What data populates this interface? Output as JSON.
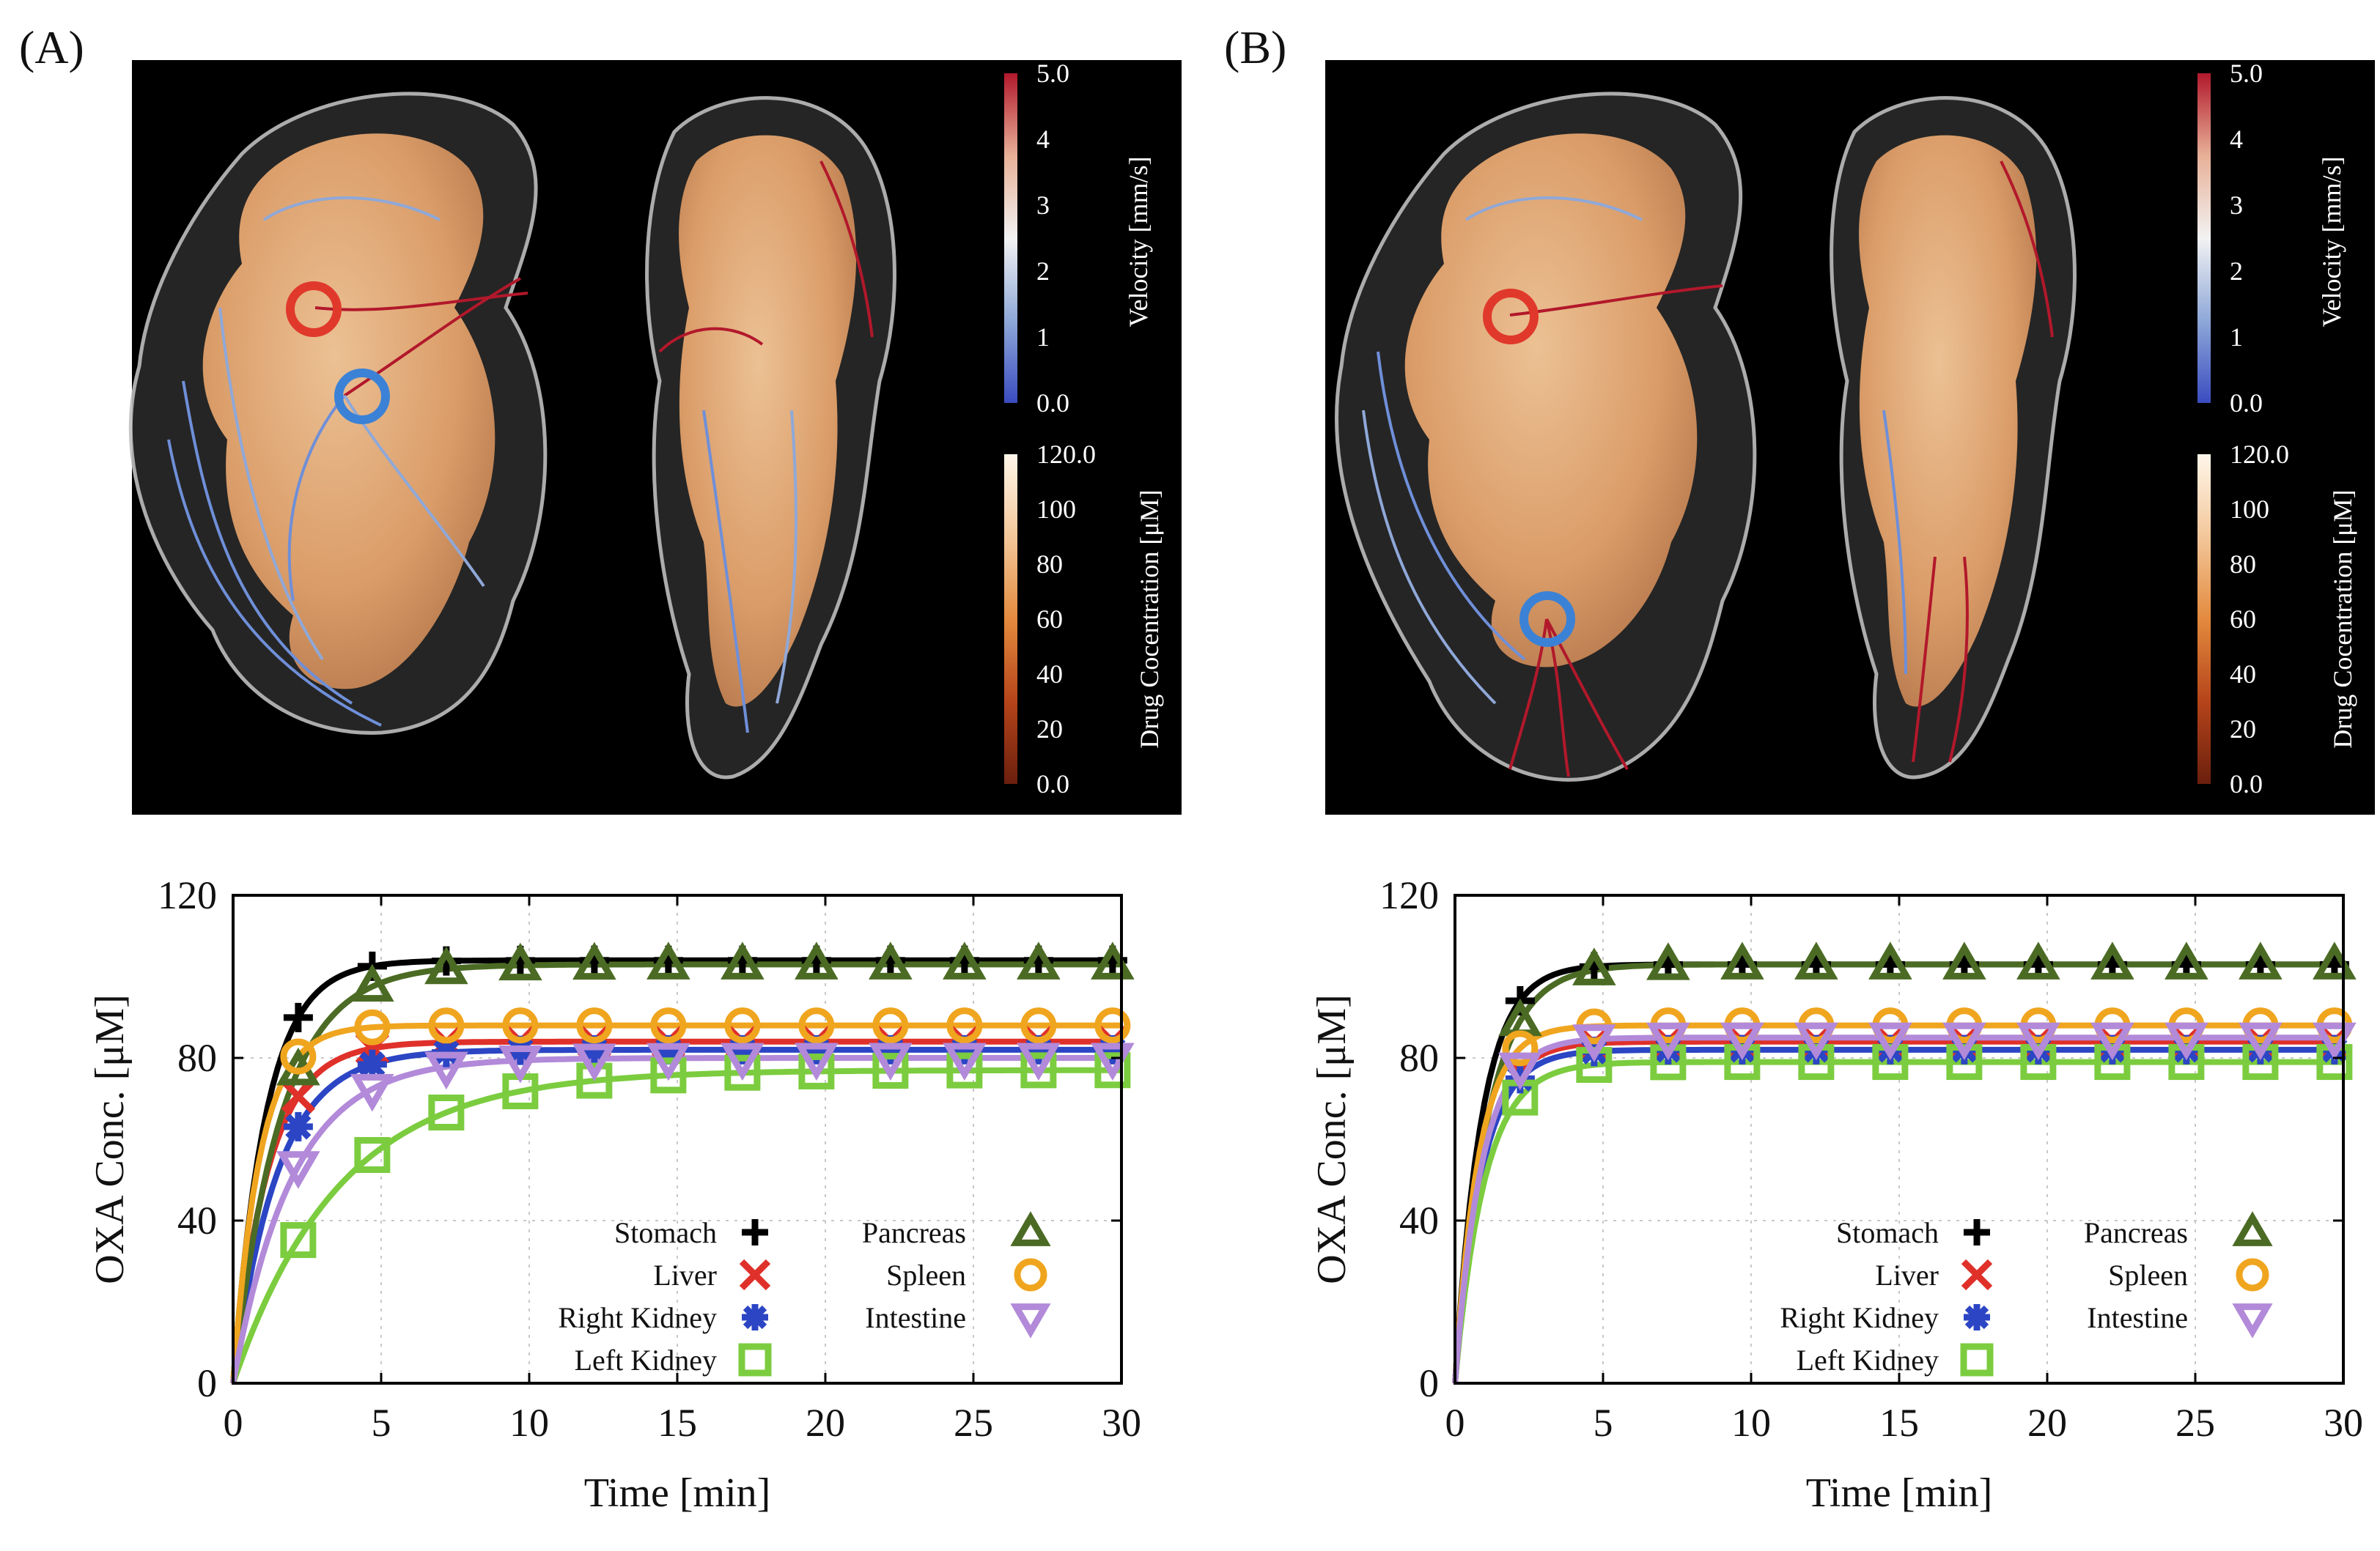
{
  "panels": [
    {
      "label": "(A)",
      "render": {
        "velocity_colorbar": {
          "title": "Velocity [mm/s]",
          "ticks": [
            "5.0",
            "4",
            "3",
            "2",
            "1",
            "0.0"
          ],
          "colors": [
            "#b2182b",
            "#e7b097",
            "#f2f2f2",
            "#8fa8d8",
            "#3a4cc0"
          ]
        },
        "drug_colorbar": {
          "title": "Drug Cocentration [μM]",
          "ticks": [
            "120.0",
            "100",
            "80",
            "60",
            "40",
            "20",
            "0.0"
          ],
          "colors": [
            "#fff6ea",
            "#f3c79a",
            "#e38a3e",
            "#b5441a",
            "#6b1f0d"
          ]
        },
        "markers": {
          "injection_ring_color": "#e0392b",
          "target_ring_color": "#3b82d6"
        }
      },
      "chart_data": {
        "type": "line",
        "xlabel": "Time [min]",
        "ylabel": "OXA Conc. [μM]",
        "xlim": [
          0,
          30
        ],
        "ylim": [
          0,
          120
        ],
        "xticks": [
          0,
          5,
          10,
          15,
          20,
          25,
          30
        ],
        "yticks": [
          0,
          40,
          80,
          120
        ],
        "grid": true,
        "legend_position": "lower-right",
        "marker_times": [
          2.2,
          4.7,
          7.2,
          9.7,
          12.2,
          14.7,
          17.2,
          19.7,
          22.2,
          24.7,
          27.2,
          29.7
        ],
        "series": [
          {
            "name": "Stomach",
            "color": "#000000",
            "marker": "plus",
            "steady": 104,
            "tau": 1.1
          },
          {
            "name": "Liver",
            "color": "#e0302a",
            "marker": "x",
            "steady": 84,
            "tau": 1.2
          },
          {
            "name": "Right Kidney",
            "color": "#2b45c4",
            "marker": "asterisk",
            "steady": 82,
            "tau": 1.5
          },
          {
            "name": "Left Kidney",
            "color": "#7ccc3f",
            "marker": "square",
            "steady": 77,
            "tau": 3.6
          },
          {
            "name": "Pancreas",
            "color": "#4b6b24",
            "marker": "triangle-up",
            "steady": 103,
            "tau": 1.6
          },
          {
            "name": "Spleen",
            "color": "#f0a51f",
            "marker": "circle",
            "steady": 88,
            "tau": 0.9
          },
          {
            "name": "Intestine",
            "color": "#b28ad9",
            "marker": "triangle-down",
            "steady": 80,
            "tau": 2.0
          }
        ]
      }
    },
    {
      "label": "(B)",
      "render": {
        "velocity_colorbar": {
          "title": "Velocity [mm/s]",
          "ticks": [
            "5.0",
            "4",
            "3",
            "2",
            "1",
            "0.0"
          ],
          "colors": [
            "#b2182b",
            "#e7b097",
            "#f2f2f2",
            "#8fa8d8",
            "#3a4cc0"
          ]
        },
        "drug_colorbar": {
          "title": "Drug Cocentration [μM]",
          "ticks": [
            "120.0",
            "100",
            "80",
            "60",
            "40",
            "20",
            "0.0"
          ],
          "colors": [
            "#fff6ea",
            "#f3c79a",
            "#e38a3e",
            "#b5441a",
            "#6b1f0d"
          ]
        },
        "markers": {
          "injection_ring_color": "#e0392b",
          "target_ring_color": "#3b82d6"
        }
      },
      "chart_data": {
        "type": "line",
        "xlabel": "Time [min]",
        "ylabel": "OXA Conc. [μM]",
        "xlim": [
          0,
          30
        ],
        "ylim": [
          0,
          120
        ],
        "xticks": [
          0,
          5,
          10,
          15,
          20,
          25,
          30
        ],
        "yticks": [
          0,
          40,
          80,
          120
        ],
        "grid": true,
        "legend_position": "lower-right",
        "marker_times": [
          2.2,
          4.7,
          7.2,
          9.7,
          12.2,
          14.7,
          17.2,
          19.7,
          22.2,
          24.7,
          27.2,
          29.7
        ],
        "series": [
          {
            "name": "Stomach",
            "color": "#000000",
            "marker": "plus",
            "steady": 103,
            "tau": 0.9
          },
          {
            "name": "Liver",
            "color": "#e0302a",
            "marker": "x",
            "steady": 84,
            "tau": 0.9
          },
          {
            "name": "Right Kidney",
            "color": "#2b45c4",
            "marker": "asterisk",
            "steady": 82,
            "tau": 0.9
          },
          {
            "name": "Left Kidney",
            "color": "#7ccc3f",
            "marker": "square",
            "steady": 79,
            "tau": 1.0
          },
          {
            "name": "Pancreas",
            "color": "#4b6b24",
            "marker": "triangle-up",
            "steady": 103,
            "tau": 1.1
          },
          {
            "name": "Spleen",
            "color": "#f0a51f",
            "marker": "circle",
            "steady": 88,
            "tau": 0.8
          },
          {
            "name": "Intestine",
            "color": "#b28ad9",
            "marker": "triangle-down",
            "steady": 85,
            "tau": 0.9
          }
        ]
      }
    }
  ]
}
